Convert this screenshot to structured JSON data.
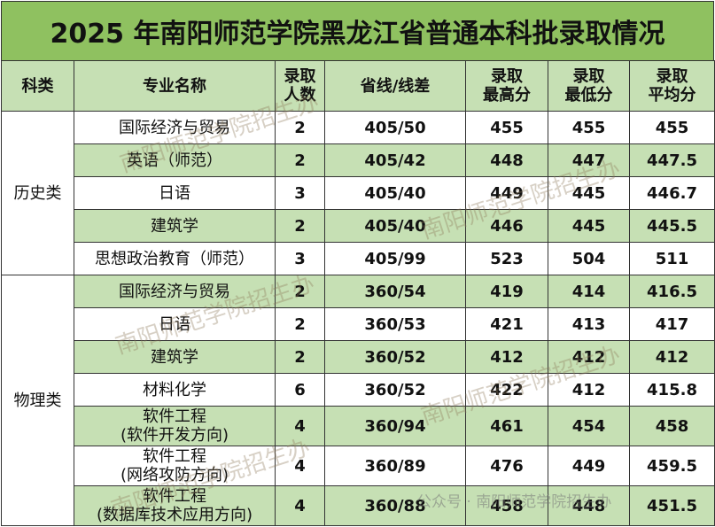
{
  "title": "2025 年南阳师范学院黑龙江省普通本科批录取情况",
  "table": {
    "header": [
      "科类",
      "专业名称",
      "录取\n人数",
      "省线/线差",
      "录取\n最高分",
      "录取\n最低分",
      "录取\n平均分"
    ],
    "groups": [
      {
        "category": "历史类",
        "rows": [
          [
            "国际经济与贸易",
            2,
            "405/50",
            455,
            455,
            455
          ],
          [
            "英语（师范）",
            2,
            "405/42",
            448,
            447,
            447.5
          ],
          [
            "日语",
            3,
            "405/40",
            449,
            445,
            446.7
          ],
          [
            "建筑学",
            2,
            "405/40",
            446,
            445,
            445.5
          ],
          [
            "思想政治教育（师范）",
            3,
            "405/99",
            523,
            504,
            511
          ]
        ]
      },
      {
        "category": "物理类",
        "rows": [
          [
            "国际经济与贸易",
            2,
            "360/54",
            419,
            414,
            416.5
          ],
          [
            "日语",
            2,
            "360/53",
            421,
            413,
            417
          ],
          [
            "建筑学",
            2,
            "360/52",
            412,
            412,
            412
          ],
          [
            "材料化学",
            6,
            "360/52",
            422,
            412,
            415.8
          ],
          [
            "软件工程\n(软件开发方向)",
            4,
            "360/94",
            461,
            454,
            458
          ],
          [
            "软件工程\n(网络攻防方向)",
            4,
            "360/89",
            476,
            449,
            459.5
          ],
          [
            "软件工程\n(数据库技术应用方向)",
            4,
            "360/88",
            458,
            448,
            451.5
          ]
        ]
      }
    ]
  },
  "watermarks": [
    "南阳师范学院招生办",
    "南阳师范学院招生办",
    "南阳师范学院招生办",
    "南阳师范学院招生办",
    "南阳师范学院招生办"
  ],
  "footer_mark": "公众号 · 南阳师范学院招生办"
}
